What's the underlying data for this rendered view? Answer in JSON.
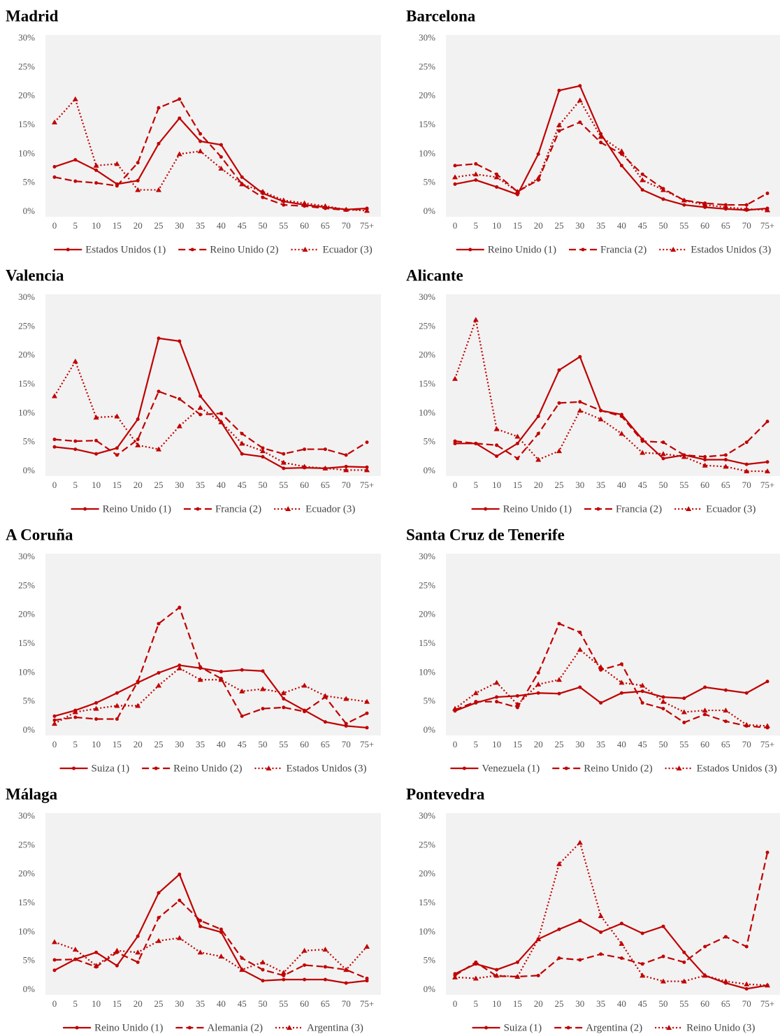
{
  "chart_data": [
    {
      "type": "line",
      "title": "Madrid",
      "categories": [
        "0",
        "5",
        "10",
        "15",
        "20",
        "25",
        "30",
        "35",
        "40",
        "45",
        "50",
        "55",
        "60",
        "65",
        "70",
        "75+"
      ],
      "ylim": [
        0,
        30
      ],
      "yticks": [
        {
          "value": 0,
          "label": "0%"
        },
        {
          "value": 5,
          "label": "5%"
        },
        {
          "value": 10,
          "label": "10%"
        },
        {
          "value": 15,
          "label": "15%"
        },
        {
          "value": 20,
          "label": "20%"
        },
        {
          "value": 25,
          "label": "25%"
        },
        {
          "value": 30,
          "label": "30%"
        }
      ],
      "series": [
        {
          "name": "Estados Unidos (1)",
          "color": "#c00000",
          "dash": "solid",
          "marker": "circle",
          "values": [
            7.8,
            9,
            7.2,
            4.8,
            5.4,
            11.8,
            16.2,
            12.2,
            11.6,
            6,
            3.2,
            1.8,
            1.2,
            0.8,
            0.4,
            0.6
          ]
        },
        {
          "name": "Reino Unido (2)",
          "color": "#c00000",
          "dash": "dashed",
          "marker": "circle",
          "values": [
            6,
            5.3,
            5,
            4.5,
            8.5,
            18,
            19.5,
            13.5,
            9.5,
            4.8,
            2.5,
            1.2,
            1,
            0.6,
            0.3,
            0.5
          ]
        },
        {
          "name": "Ecuador (3)",
          "color": "#c00000",
          "dash": "dotted",
          "marker": "triangle",
          "values": [
            15.5,
            19.5,
            8,
            8.3,
            3.8,
            3.8,
            10,
            10.5,
            7.5,
            4.8,
            3.5,
            2,
            1.5,
            1,
            0.4,
            0.2
          ]
        }
      ]
    },
    {
      "type": "line",
      "title": "Barcelona",
      "categories": [
        "0",
        "5",
        "10",
        "15",
        "20",
        "25",
        "30",
        "35",
        "40",
        "45",
        "50",
        "55",
        "60",
        "65",
        "70",
        "75+"
      ],
      "ylim": [
        0,
        30
      ],
      "yticks": [
        {
          "value": 0,
          "label": "0%"
        },
        {
          "value": 5,
          "label": "5%"
        },
        {
          "value": 10,
          "label": "10%"
        },
        {
          "value": 15,
          "label": "15%"
        },
        {
          "value": 20,
          "label": "20%"
        },
        {
          "value": 25,
          "label": "25%"
        },
        {
          "value": 30,
          "label": "30%"
        }
      ],
      "series": [
        {
          "name": "Reino Unido (1)",
          "color": "#c00000",
          "dash": "solid",
          "marker": "circle",
          "values": [
            4.8,
            5.5,
            4.3,
            3,
            10,
            21,
            21.8,
            13.5,
            8,
            3.8,
            2.2,
            1.2,
            0.8,
            0.5,
            0.3,
            0.6
          ]
        },
        {
          "name": "Francia (2)",
          "color": "#c00000",
          "dash": "dashed",
          "marker": "circle",
          "values": [
            8,
            8.3,
            6.5,
            3.5,
            5.5,
            14,
            15.5,
            12,
            10,
            6.5,
            4,
            2,
            1.5,
            1.2,
            1.2,
            3.2
          ]
        },
        {
          "name": "Estados Unidos (3)",
          "color": "#c00000",
          "dash": "dotted",
          "marker": "triangle",
          "values": [
            6,
            6.5,
            6,
            3.5,
            5.8,
            15,
            19.3,
            13,
            10.5,
            5.5,
            3.8,
            2,
            1.2,
            0.8,
            0.5,
            0.3
          ]
        }
      ]
    },
    {
      "type": "line",
      "title": "Valencia",
      "categories": [
        "0",
        "5",
        "10",
        "15",
        "20",
        "25",
        "30",
        "35",
        "40",
        "45",
        "50",
        "55",
        "60",
        "65",
        "70",
        "75+"
      ],
      "ylim": [
        0,
        30
      ],
      "yticks": [
        {
          "value": 0,
          "label": "0%"
        },
        {
          "value": 5,
          "label": "5%"
        },
        {
          "value": 10,
          "label": "10%"
        },
        {
          "value": 15,
          "label": "15%"
        },
        {
          "value": 20,
          "label": "20%"
        },
        {
          "value": 25,
          "label": "25%"
        },
        {
          "value": 30,
          "label": "30%"
        }
      ],
      "series": [
        {
          "name": "Reino Unido (1)",
          "color": "#c00000",
          "dash": "solid",
          "marker": "circle",
          "values": [
            4.2,
            3.8,
            3,
            4,
            9,
            23,
            22.5,
            13,
            8.5,
            3,
            2.5,
            0.5,
            0.6,
            0.5,
            0.8,
            0.7
          ]
        },
        {
          "name": "Francia (2)",
          "color": "#c00000",
          "dash": "dashed",
          "marker": "circle",
          "values": [
            5.5,
            5.2,
            5.3,
            2.8,
            5.5,
            13.8,
            12.5,
            9.8,
            10,
            6.5,
            4,
            3,
            3.8,
            3.8,
            2.8,
            5
          ]
        },
        {
          "name": "Ecuador (3)",
          "color": "#c00000",
          "dash": "dotted",
          "marker": "triangle",
          "values": [
            13,
            19,
            9.3,
            9.5,
            4.5,
            3.8,
            7.8,
            11,
            8.5,
            4.8,
            3.5,
            1.5,
            0.8,
            0.5,
            0.2,
            0.2
          ]
        }
      ]
    },
    {
      "type": "line",
      "title": "Alicante",
      "categories": [
        "0",
        "5",
        "10",
        "15",
        "20",
        "25",
        "30",
        "35",
        "40",
        "45",
        "50",
        "55",
        "60",
        "65",
        "70",
        "75+"
      ],
      "ylim": [
        0,
        30
      ],
      "yticks": [
        {
          "value": 0,
          "label": "0%"
        },
        {
          "value": 5,
          "label": "5%"
        },
        {
          "value": 10,
          "label": "10%"
        },
        {
          "value": 15,
          "label": "15%"
        },
        {
          "value": 20,
          "label": "20%"
        },
        {
          "value": 25,
          "label": "25%"
        },
        {
          "value": 30,
          "label": "30%"
        }
      ],
      "series": [
        {
          "name": "Reino Unido (1)",
          "color": "#c00000",
          "dash": "solid",
          "marker": "circle",
          "values": [
            4.8,
            4.8,
            2.6,
            4.8,
            9.5,
            17.5,
            19.8,
            10.5,
            9.8,
            5.5,
            2.2,
            2.8,
            2,
            2,
            1.2,
            1.6
          ]
        },
        {
          "name": "Francia (2)",
          "color": "#c00000",
          "dash": "dashed",
          "marker": "circle",
          "values": [
            5.2,
            4.8,
            4.5,
            2.2,
            6.5,
            11.8,
            12,
            10.5,
            9.5,
            5.2,
            5,
            2.8,
            2.5,
            2.8,
            5,
            8.6
          ]
        },
        {
          "name": "Ecuador (3)",
          "color": "#c00000",
          "dash": "dotted",
          "marker": "triangle",
          "values": [
            16,
            26.2,
            7.3,
            6,
            2,
            3.5,
            10.5,
            9,
            6.5,
            3.2,
            3,
            2.5,
            1,
            0.8,
            0,
            0
          ]
        }
      ]
    },
    {
      "type": "line",
      "title": "A Coruña",
      "categories": [
        "0",
        "5",
        "10",
        "15",
        "20",
        "25",
        "30",
        "35",
        "40",
        "45",
        "50",
        "55",
        "60",
        "65",
        "70",
        "75+"
      ],
      "ylim": [
        0,
        30
      ],
      "yticks": [
        {
          "value": 0,
          "label": "0%"
        },
        {
          "value": 5,
          "label": "5%"
        },
        {
          "value": 10,
          "label": "10%"
        },
        {
          "value": 15,
          "label": "15%"
        },
        {
          "value": 20,
          "label": "20%"
        },
        {
          "value": 25,
          "label": "25%"
        },
        {
          "value": 30,
          "label": "30%"
        }
      ],
      "series": [
        {
          "name": "Suiza (1)",
          "color": "#c00000",
          "dash": "solid",
          "marker": "circle",
          "values": [
            2.5,
            3.5,
            4.8,
            6.5,
            8.3,
            10,
            11.3,
            10.8,
            10.2,
            10.5,
            10.3,
            5.5,
            3.5,
            1.5,
            0.8,
            0.5
          ]
        },
        {
          "name": "Reino Unido (2)",
          "color": "#c00000",
          "dash": "dashed",
          "marker": "circle",
          "values": [
            1.8,
            2.3,
            2,
            2,
            8.5,
            18.5,
            21.3,
            11,
            9,
            2.5,
            3.8,
            4,
            3.3,
            5.8,
            1.2,
            3
          ]
        },
        {
          "name": "Estados Unidos (3)",
          "color": "#c00000",
          "dash": "dotted",
          "marker": "triangle",
          "values": [
            1.2,
            3.2,
            3.8,
            4.3,
            4.3,
            7.8,
            10.8,
            8.8,
            8.8,
            6.8,
            7.2,
            6.5,
            7.8,
            6,
            5.5,
            5
          ]
        }
      ]
    },
    {
      "type": "line",
      "title": "Santa Cruz de Tenerife",
      "categories": [
        "0",
        "5",
        "10",
        "15",
        "20",
        "25",
        "30",
        "35",
        "40",
        "45",
        "50",
        "55",
        "60",
        "65",
        "70",
        "75+"
      ],
      "ylim": [
        0,
        30
      ],
      "yticks": [
        {
          "value": 0,
          "label": "0%"
        },
        {
          "value": 5,
          "label": "5%"
        },
        {
          "value": 10,
          "label": "10%"
        },
        {
          "value": 15,
          "label": "15%"
        },
        {
          "value": 20,
          "label": "20%"
        },
        {
          "value": 25,
          "label": "25%"
        },
        {
          "value": 30,
          "label": "30%"
        }
      ],
      "series": [
        {
          "name": "Venezuela (1)",
          "color": "#c00000",
          "dash": "solid",
          "marker": "circle",
          "values": [
            3.4,
            4.8,
            5.8,
            6,
            6.5,
            6.4,
            7.5,
            4.8,
            6.5,
            6.8,
            5.8,
            5.6,
            7.5,
            7,
            6.5,
            8.5
          ]
        },
        {
          "name": "Reino Unido (2)",
          "color": "#c00000",
          "dash": "dashed",
          "marker": "circle",
          "values": [
            3.6,
            5,
            5,
            4,
            10,
            18.5,
            17,
            10.5,
            11.5,
            4.8,
            3.8,
            1.4,
            2.8,
            1.6,
            0.8,
            0.5
          ]
        },
        {
          "name": "Estados Unidos (3)",
          "color": "#c00000",
          "dash": "dotted",
          "marker": "triangle",
          "values": [
            3.8,
            6.5,
            8.3,
            4.5,
            8,
            8.8,
            14,
            11,
            8.3,
            7.8,
            5,
            3.2,
            3.5,
            3.5,
            1,
            0.8
          ]
        }
      ]
    },
    {
      "type": "line",
      "title": "Málaga",
      "categories": [
        "0",
        "5",
        "10",
        "15",
        "20",
        "25",
        "30",
        "35",
        "40",
        "45",
        "50",
        "55",
        "60",
        "65",
        "70",
        "75+"
      ],
      "ylim": [
        0,
        30
      ],
      "yticks": [
        {
          "value": 0,
          "label": "0%"
        },
        {
          "value": 5,
          "label": "5%"
        },
        {
          "value": 10,
          "label": "10%"
        },
        {
          "value": 15,
          "label": "15%"
        },
        {
          "value": 20,
          "label": "20%"
        },
        {
          "value": 25,
          "label": "25%"
        },
        {
          "value": 30,
          "label": "30%"
        }
      ],
      "series": [
        {
          "name": "Reino Unido (1)",
          "color": "#c00000",
          "dash": "solid",
          "marker": "circle",
          "values": [
            3.4,
            5.3,
            6.5,
            4.2,
            9.3,
            16.8,
            20,
            11,
            10,
            3.5,
            1.6,
            1.8,
            1.8,
            1.8,
            1.2,
            1.6
          ]
        },
        {
          "name": "Alemania (2)",
          "color": "#c00000",
          "dash": "dashed",
          "marker": "circle",
          "values": [
            5.2,
            5.3,
            4,
            6.5,
            4.8,
            12.5,
            15.5,
            12,
            10.5,
            5.5,
            3.5,
            2.5,
            4.3,
            4,
            3.5,
            2
          ]
        },
        {
          "name": "Argentina (3)",
          "color": "#c00000",
          "dash": "dotted",
          "marker": "triangle",
          "values": [
            8.3,
            7,
            4.2,
            6.8,
            6.5,
            8.5,
            9,
            6.5,
            5.8,
            3.5,
            4.8,
            3,
            6.8,
            7,
            3.5,
            7.5
          ]
        }
      ]
    },
    {
      "type": "line",
      "title": "Pontevedra",
      "categories": [
        "0",
        "5",
        "10",
        "15",
        "20",
        "25",
        "30",
        "35",
        "40",
        "45",
        "50",
        "55",
        "60",
        "65",
        "70",
        "75+"
      ],
      "ylim": [
        0,
        30
      ],
      "yticks": [
        {
          "value": 0,
          "label": "0%"
        },
        {
          "value": 5,
          "label": "5%"
        },
        {
          "value": 10,
          "label": "10%"
        },
        {
          "value": 15,
          "label": "15%"
        },
        {
          "value": 20,
          "label": "20%"
        },
        {
          "value": 25,
          "label": "25%"
        },
        {
          "value": 30,
          "label": "30%"
        }
      ],
      "series": [
        {
          "name": "Suiza (1)",
          "color": "#c00000",
          "dash": "solid",
          "marker": "circle",
          "values": [
            2.8,
            4.5,
            3.5,
            4.8,
            8.8,
            10.5,
            12,
            10,
            11.5,
            9.8,
            11,
            6.5,
            2.5,
            1.2,
            0.2,
            0.8
          ]
        },
        {
          "name": "Argentina (2)",
          "color": "#c00000",
          "dash": "dashed",
          "marker": "circle",
          "values": [
            2.5,
            4.8,
            2.4,
            2.3,
            2.5,
            5.5,
            5.2,
            6.2,
            5.5,
            4.5,
            5.8,
            4.8,
            7.5,
            9.2,
            7.5,
            23.8
          ]
        },
        {
          "name": "Reino Unido (3)",
          "color": "#c00000",
          "dash": "dotted",
          "marker": "triangle",
          "values": [
            2.2,
            2,
            2.5,
            2.3,
            8.8,
            21.8,
            25.5,
            12.8,
            8,
            2.5,
            1.5,
            1.5,
            2.5,
            1.5,
            1,
            0.8
          ]
        }
      ]
    }
  ]
}
